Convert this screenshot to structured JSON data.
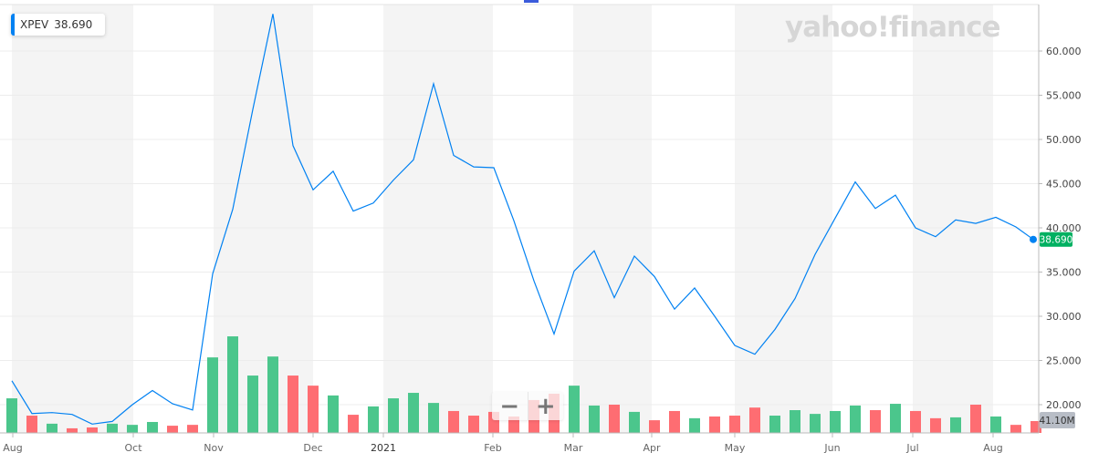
{
  "legend": {
    "symbol": "XPEV",
    "price": "38.690",
    "accent": "#0081f2"
  },
  "logo_text": "yahoo!finance",
  "zoom": {
    "minus": "−",
    "plus": "+"
  },
  "colors": {
    "line": "#0081f2",
    "up": "#4bc68c",
    "down": "#fe6d72",
    "last_price_bg": "#00b061",
    "volume_tag_bg": "#b8bdc6"
  },
  "chart_data": {
    "type": "line",
    "symbol": "XPEV",
    "ylim": [
      17,
      65
    ],
    "y_ticks": [
      "20.000",
      "25.000",
      "30.000",
      "35.000",
      "40.000",
      "45.000",
      "50.000",
      "55.000",
      "60.000"
    ],
    "x_ticks": [
      "Aug",
      "Oct",
      "Nov",
      "Dec",
      "2021",
      "Feb",
      "Mar",
      "Apr",
      "May",
      "Jun",
      "Jul",
      "Aug"
    ],
    "grid": true,
    "last_price_label": "38.690",
    "last_volume_label": "41.10M",
    "price": [
      22.7,
      19.0,
      19.1,
      18.9,
      17.8,
      18.1,
      20.0,
      21.6,
      20.1,
      19.4,
      34.8,
      42.1,
      53.4,
      64.2,
      49.3,
      44.3,
      46.4,
      41.9,
      42.8,
      45.4,
      47.7,
      56.3,
      48.2,
      46.9,
      46.8,
      40.8,
      34.0,
      28.0,
      35.1,
      37.4,
      32.1,
      36.8,
      34.5,
      30.8,
      33.2,
      30.0,
      26.7,
      25.7,
      28.5,
      32.0,
      37.0,
      41.1,
      45.2,
      42.2,
      43.7,
      40.0,
      39.0,
      40.9,
      40.5,
      41.2,
      40.1,
      38.69
    ],
    "volume_millions": [
      120,
      60,
      32,
      16,
      19,
      32,
      28,
      38,
      25,
      28,
      262,
      335,
      199,
      265,
      199,
      164,
      130,
      63,
      92,
      120,
      139,
      104,
      76,
      60,
      73,
      57,
      114,
      136,
      164,
      95,
      98,
      73,
      44,
      76,
      51,
      57,
      60,
      88,
      60,
      79,
      66,
      76,
      95,
      79,
      101,
      76,
      51,
      54,
      98,
      57,
      28,
      41.1
    ],
    "volume_up": [
      true,
      false,
      true,
      false,
      false,
      true,
      true,
      true,
      false,
      false,
      true,
      true,
      true,
      true,
      false,
      false,
      true,
      false,
      true,
      true,
      true,
      true,
      false,
      false,
      false,
      false,
      false,
      false,
      true,
      true,
      false,
      true,
      false,
      false,
      true,
      false,
      false,
      false,
      true,
      true,
      true,
      true,
      true,
      false,
      true,
      false,
      false,
      true,
      false,
      true,
      false,
      false
    ]
  }
}
